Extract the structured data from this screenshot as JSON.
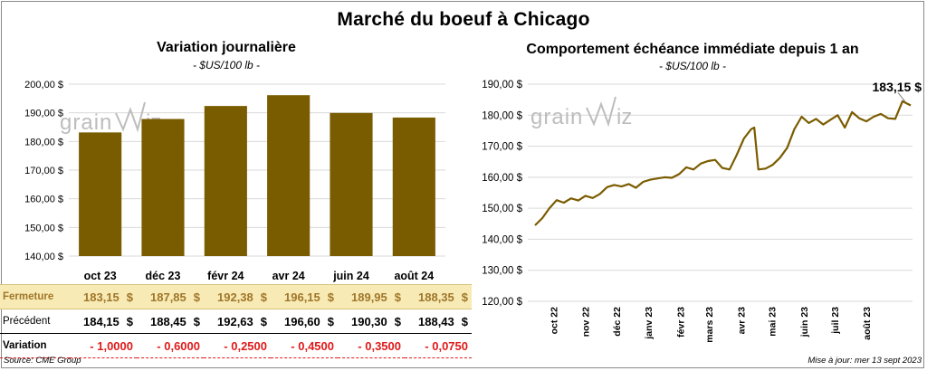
{
  "main_title": "Marché du boeuf à Chicago",
  "brand": {
    "logo_text_left": "grain",
    "logo_text_right": "wiz",
    "color": "#bdbdbd"
  },
  "colors": {
    "bar": "#7a5c00",
    "line": "#7a5c00",
    "close_row_bg": "#f7eab4",
    "close_row_text": "#a0762a",
    "negative": "#e01a1a",
    "grid": "#d9d9d9"
  },
  "left_chart": {
    "title": "Variation  journalière",
    "subtitle": "- $US/100 lb -"
  },
  "right_chart": {
    "title": "Comportement  échéance immédiate depuis 1 an",
    "subtitle": "- $US/100 lb -",
    "last_value_label": "183,15 $"
  },
  "chart_data": [
    {
      "type": "bar",
      "title": "Variation  journalière",
      "subtitle": "- $US/100 lb -",
      "categories": [
        "oct 23",
        "déc 23",
        "févr 24",
        "avr 24",
        "juin 24",
        "août 24"
      ],
      "values": [
        183.15,
        187.85,
        192.38,
        196.15,
        189.95,
        188.35
      ],
      "ylim": [
        140,
        200
      ],
      "yticks": [
        140,
        150,
        160,
        170,
        180,
        190,
        200
      ],
      "ytick_labels": [
        "140,00 $",
        "150,00 $",
        "160,00 $",
        "170,00 $",
        "180,00 $",
        "190,00 $",
        "200,00 $"
      ],
      "grid": true
    },
    {
      "type": "line",
      "title": "Comportement  échéance immédiate depuis 1 an",
      "subtitle": "- $US/100 lb -",
      "x_ticks": [
        "oct 22",
        "nov 22",
        "déc 22",
        "janv 23",
        "févr 23",
        "mars 23",
        "avr 23",
        "mai 23",
        "juin 23",
        "juil 23",
        "août 23"
      ],
      "ylim": [
        120,
        190
      ],
      "yticks": [
        120,
        130,
        140,
        150,
        160,
        170,
        180,
        190
      ],
      "ytick_labels": [
        "120,00 $",
        "130,00 $",
        "140,00 $",
        "150,00 $",
        "160,00 $",
        "170,00 $",
        "180,00 $",
        "190,00 $"
      ],
      "x": [
        "2022-09-13",
        "2022-09-20",
        "2022-09-27",
        "2022-10-04",
        "2022-10-11",
        "2022-10-18",
        "2022-10-25",
        "2022-11-01",
        "2022-11-08",
        "2022-11-15",
        "2022-11-22",
        "2022-11-29",
        "2022-12-06",
        "2022-12-13",
        "2022-12-20",
        "2022-12-27",
        "2023-01-03",
        "2023-01-10",
        "2023-01-17",
        "2023-01-24",
        "2023-01-31",
        "2023-02-07",
        "2023-02-14",
        "2023-02-21",
        "2023-02-28",
        "2023-03-07",
        "2023-03-14",
        "2023-03-21",
        "2023-03-28",
        "2023-04-04",
        "2023-04-11",
        "2023-04-14",
        "2023-04-18",
        "2023-04-25",
        "2023-05-02",
        "2023-05-09",
        "2023-05-16",
        "2023-05-23",
        "2023-05-30",
        "2023-06-06",
        "2023-06-13",
        "2023-06-20",
        "2023-06-27",
        "2023-07-04",
        "2023-07-11",
        "2023-07-18",
        "2023-07-25",
        "2023-08-01",
        "2023-08-08",
        "2023-08-15",
        "2023-08-22",
        "2023-08-29",
        "2023-09-05",
        "2023-09-13"
      ],
      "values": [
        144.5,
        146.8,
        150.0,
        152.6,
        151.8,
        153.2,
        152.5,
        154.0,
        153.3,
        154.6,
        156.8,
        157.5,
        157.0,
        157.8,
        156.6,
        158.5,
        159.2,
        159.6,
        160.0,
        159.8,
        161.0,
        163.2,
        162.5,
        164.4,
        165.2,
        165.6,
        163.0,
        162.5,
        167.2,
        172.5,
        175.5,
        176.0,
        162.5,
        162.8,
        164.0,
        166.3,
        169.5,
        175.5,
        179.5,
        177.5,
        178.8,
        177.0,
        178.5,
        180.0,
        176.0,
        181.0,
        179.0,
        178.0,
        179.5,
        180.4,
        179.0,
        178.8,
        184.5,
        183.15
      ],
      "last_value_label": "183,15 $",
      "grid": true
    }
  ],
  "table": {
    "rows": [
      {
        "label": "Fermeture",
        "values": [
          "183,15",
          "187,85",
          "192,38",
          "196,15",
          "189,95",
          "188,35"
        ],
        "unit": "$"
      },
      {
        "label": "Précédent",
        "values": [
          "184,15",
          "188,45",
          "192,63",
          "196,60",
          "190,30",
          "188,43"
        ],
        "unit": "$"
      },
      {
        "label": "Variation",
        "values": [
          "- 1,0000",
          "- 0,6000",
          "- 0,2500",
          "- 0,4500",
          "- 0,3500",
          "- 0,0750"
        ]
      }
    ]
  },
  "footer": {
    "source": "Source: CME Group",
    "updated": "Mise à jour: mer 13 sept 2023"
  }
}
